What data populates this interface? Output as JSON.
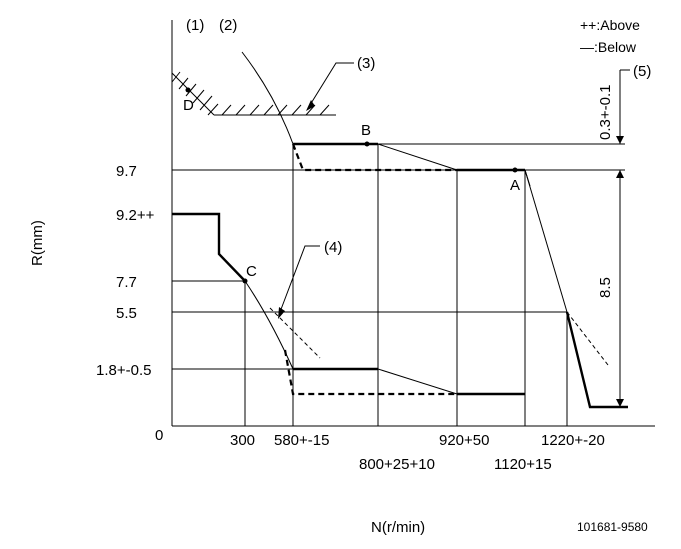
{
  "axes": {
    "x_title": "N(r/min)",
    "y_title": "R(mm)",
    "origin_label": "0"
  },
  "y_labels": {
    "r97": "9.7",
    "r92": "9.2++",
    "r77": "7.7",
    "r55": "5.5",
    "r18": "1.8+-0.5"
  },
  "x_labels": {
    "n300": "300",
    "n580": "580+-15",
    "n800": "800+25+10",
    "n920": "920+50",
    "n1120": "1120+15",
    "n1220": "1220+-20"
  },
  "points": {
    "A": "A",
    "B": "B",
    "C": "C",
    "D": "D"
  },
  "callouts": {
    "c1": "(1)",
    "c2": "(2)",
    "c3": "(3)",
    "c4": "(4)",
    "c5": "(5)"
  },
  "legend": {
    "above": "++:Above",
    "below": "—:Below"
  },
  "dims": {
    "gap": "0.3+-0.1",
    "stroke": "8.5"
  },
  "diagram_code": "101681-9580"
}
